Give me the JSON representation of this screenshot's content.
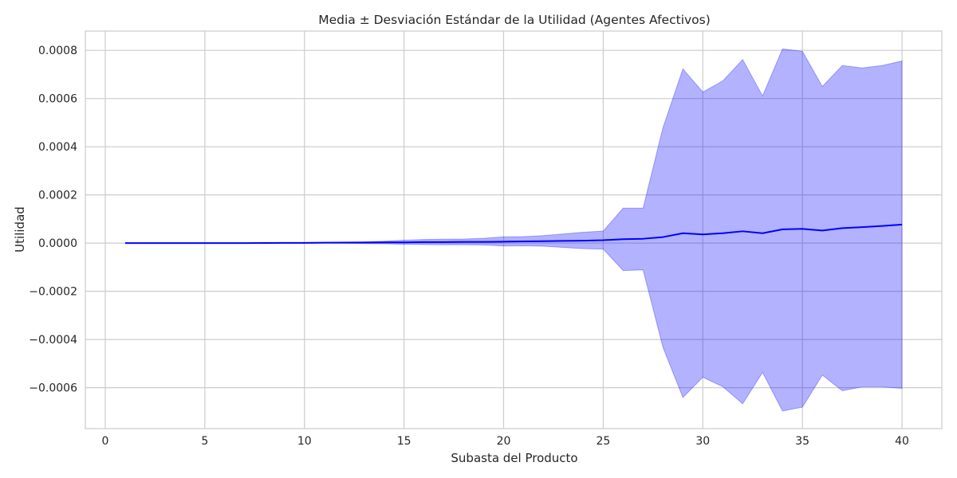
{
  "chart_data": {
    "type": "line",
    "title": "Media ± Desviación Estándar de la Utilidad (Agentes Afectivos)",
    "xlabel": "Subasta del Producto",
    "ylabel": "Utilidad",
    "xlim": [
      -1,
      42
    ],
    "ylim": [
      -0.00077,
      0.00088
    ],
    "x_ticks": [
      0,
      5,
      10,
      15,
      20,
      25,
      30,
      35,
      40
    ],
    "x_tick_labels": [
      "0",
      "5",
      "10",
      "15",
      "20",
      "25",
      "30",
      "35",
      "40"
    ],
    "y_ticks": [
      -0.0006,
      -0.0004,
      -0.0002,
      0.0,
      0.0002,
      0.0004,
      0.0006,
      0.0008
    ],
    "y_tick_labels": [
      "−0.0006",
      "−0.0004",
      "−0.0002",
      "0.0000",
      "0.0002",
      "0.0004",
      "0.0006",
      "0.0008"
    ],
    "grid": true,
    "line_color": "#0000ff",
    "band_color": "#0000ff",
    "series": [
      {
        "x": [
          1,
          2,
          3,
          4,
          5,
          6,
          7,
          8,
          9,
          10,
          11,
          12,
          13,
          14,
          15,
          16,
          17,
          18,
          19,
          20,
          21,
          22,
          23,
          24,
          25,
          26,
          27,
          28,
          29,
          30,
          31,
          32,
          33,
          34,
          35,
          36,
          37,
          38,
          39,
          40
        ],
        "mean": [
          0,
          0,
          0,
          0,
          0,
          0,
          0,
          5e-07,
          1e-06,
          1e-06,
          1.5e-06,
          2e-06,
          2e-06,
          3e-06,
          3e-06,
          4e-06,
          4e-06,
          5e-06,
          5e-06,
          6e-06,
          7e-06,
          8e-06,
          9e-06,
          1e-05,
          1.2e-05,
          1.6e-05,
          1.8e-05,
          2.5e-05,
          4.1e-05,
          3.6e-05,
          4.1e-05,
          4.9e-05,
          4.1e-05,
          5.7e-05,
          5.9e-05,
          5.2e-05,
          6.2e-05,
          6.6e-05,
          7.1e-05,
          7.7e-05
        ],
        "upper": [
          0,
          0,
          0,
          0,
          0,
          0,
          0,
          1e-06,
          2e-06,
          2e-06,
          3e-06,
          4e-06,
          6e-06,
          8e-06,
          1.2e-05,
          1.5e-05,
          1.6e-05,
          1.7e-05,
          2e-05,
          2.6e-05,
          2.7e-05,
          3.1e-05,
          3.8e-05,
          4.5e-05,
          5e-05,
          0.000145,
          0.000145,
          0.00048,
          0.000723,
          0.000627,
          0.000673,
          0.000762,
          0.000611,
          0.000806,
          0.000796,
          0.00065,
          0.000737,
          0.000727,
          0.000737,
          0.000756
        ],
        "lower": [
          0,
          0,
          0,
          0,
          0,
          0,
          0,
          0,
          0,
          0,
          0,
          -1e-06,
          -2e-06,
          -3e-06,
          -5e-06,
          -6e-06,
          -7e-06,
          -7e-06,
          -8e-06,
          -1.2e-05,
          -1.1e-05,
          -1.3e-05,
          -1.8e-05,
          -2.3e-05,
          -2.5e-05,
          -0.000114,
          -0.000111,
          -0.000433,
          -0.000641,
          -0.000557,
          -0.000596,
          -0.000667,
          -0.000537,
          -0.000697,
          -0.000681,
          -0.000548,
          -0.000613,
          -0.000597,
          -0.000597,
          -0.000603
        ]
      }
    ]
  }
}
